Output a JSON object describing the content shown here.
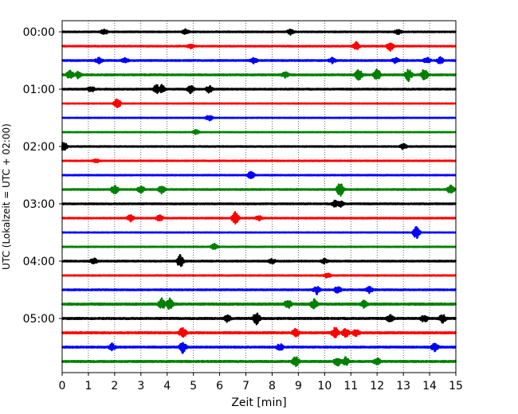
{
  "chart_data": {
    "type": "line",
    "title": "",
    "xlabel": "Zeit  [min]",
    "ylabel": "UTC (Lokalzeit = UTC + 02:00)",
    "xlim": [
      0,
      15
    ],
    "x_ticks": [
      0,
      1,
      2,
      3,
      4,
      5,
      6,
      7,
      8,
      9,
      10,
      11,
      12,
      13,
      14,
      15
    ],
    "y_ticks": [
      "00:00",
      "01:00",
      "02:00",
      "03:00",
      "04:00",
      "05:00"
    ],
    "grid": "vertical dotted at each minute",
    "colors": [
      "#000000",
      "#ff0000",
      "#0000ff",
      "#008000"
    ],
    "traces": [
      {
        "start": "00:00",
        "color": "#000000",
        "noise": 0.5,
        "events": [
          [
            1.6,
            0.8
          ],
          [
            4.7,
            0.7
          ],
          [
            8.7,
            0.8
          ],
          [
            12.8,
            0.7
          ]
        ]
      },
      {
        "start": "00:15",
        "color": "#ff0000",
        "noise": 0.5,
        "events": [
          [
            4.9,
            0.6
          ],
          [
            11.2,
            1.2
          ],
          [
            12.5,
            1.3
          ]
        ]
      },
      {
        "start": "00:30",
        "color": "#0000ff",
        "noise": 0.6,
        "events": [
          [
            1.4,
            0.8
          ],
          [
            2.4,
            0.7
          ],
          [
            7.3,
            0.8
          ],
          [
            10.3,
            0.8
          ],
          [
            12.7,
            0.8
          ],
          [
            13.9,
            0.9
          ],
          [
            14.4,
            1.0
          ]
        ]
      },
      {
        "start": "00:45",
        "color": "#008000",
        "noise": 0.7,
        "events": [
          [
            0.3,
            1.2
          ],
          [
            0.6,
            0.9
          ],
          [
            8.5,
            0.8
          ],
          [
            11.3,
            1.6
          ],
          [
            12.0,
            1.8
          ],
          [
            13.2,
            1.8
          ],
          [
            13.8,
            1.8
          ]
        ]
      },
      {
        "start": "01:00",
        "color": "#000000",
        "noise": 0.6,
        "events": [
          [
            3.6,
            1.4
          ],
          [
            3.8,
            1.2
          ],
          [
            4.9,
            1.2
          ],
          [
            5.6,
            1.1
          ],
          [
            1.1,
            0.9
          ]
        ]
      },
      {
        "start": "01:15",
        "color": "#ff0000",
        "noise": 0.3,
        "events": [
          [
            2.1,
            1.5
          ]
        ]
      },
      {
        "start": "01:30",
        "color": "#0000ff",
        "noise": 0.3,
        "events": [
          [
            5.6,
            0.9
          ]
        ]
      },
      {
        "start": "01:45",
        "color": "#008000",
        "noise": 0.3,
        "events": [
          [
            5.1,
            0.7
          ]
        ]
      },
      {
        "start": "02:00",
        "color": "#000000",
        "noise": 0.5,
        "events": [
          [
            0.05,
            1.6
          ],
          [
            13.0,
            0.8
          ]
        ]
      },
      {
        "start": "02:15",
        "color": "#ff0000",
        "noise": 0.4,
        "events": [
          [
            1.3,
            0.5
          ]
        ]
      },
      {
        "start": "02:30",
        "color": "#0000ff",
        "noise": 0.4,
        "events": [
          [
            7.2,
            1.3
          ]
        ]
      },
      {
        "start": "02:45",
        "color": "#008000",
        "noise": 0.6,
        "events": [
          [
            2.0,
            1.4
          ],
          [
            3.0,
            1.1
          ],
          [
            3.8,
            1.2
          ],
          [
            10.6,
            2.3
          ],
          [
            14.8,
            1.2
          ]
        ]
      },
      {
        "start": "03:00",
        "color": "#000000",
        "noise": 0.6,
        "events": [
          [
            10.4,
            1.0
          ],
          [
            10.6,
            0.9
          ]
        ]
      },
      {
        "start": "03:15",
        "color": "#ff0000",
        "noise": 0.5,
        "events": [
          [
            2.6,
            1.0
          ],
          [
            3.7,
            1.0
          ],
          [
            6.6,
            2.0
          ],
          [
            7.5,
            0.7
          ]
        ]
      },
      {
        "start": "03:30",
        "color": "#0000ff",
        "noise": 0.3,
        "events": [
          [
            13.5,
            2.0
          ]
        ]
      },
      {
        "start": "03:45",
        "color": "#008000",
        "noise": 0.4,
        "events": [
          [
            5.8,
            0.9
          ]
        ]
      },
      {
        "start": "04:00",
        "color": "#000000",
        "noise": 0.6,
        "events": [
          [
            4.5,
            1.9
          ],
          [
            1.2,
            0.9
          ],
          [
            8.0,
            0.7
          ],
          [
            10.0,
            0.7
          ]
        ]
      },
      {
        "start": "04:15",
        "color": "#ff0000",
        "noise": 0.4,
        "events": [
          [
            10.1,
            0.7
          ]
        ]
      },
      {
        "start": "04:30",
        "color": "#0000ff",
        "noise": 0.6,
        "events": [
          [
            9.7,
            1.3
          ],
          [
            10.5,
            1.0
          ],
          [
            11.7,
            0.9
          ]
        ]
      },
      {
        "start": "04:45",
        "color": "#008000",
        "noise": 0.9,
        "events": [
          [
            3.8,
            1.6
          ],
          [
            4.1,
            1.6
          ],
          [
            8.6,
            1.3
          ],
          [
            9.6,
            1.4
          ],
          [
            11.5,
            1.0
          ]
        ]
      },
      {
        "start": "05:00",
        "color": "#000000",
        "noise": 0.8,
        "events": [
          [
            7.4,
            2.0
          ],
          [
            6.3,
            1.0
          ],
          [
            13.8,
            1.2
          ],
          [
            14.5,
            1.2
          ],
          [
            12.5,
            1.0
          ]
        ]
      },
      {
        "start": "05:15",
        "color": "#ff0000",
        "noise": 0.8,
        "events": [
          [
            4.6,
            1.8
          ],
          [
            10.4,
            1.6
          ],
          [
            10.8,
            1.4
          ],
          [
            8.9,
            1.2
          ],
          [
            11.2,
            1.0
          ]
        ]
      },
      {
        "start": "05:30",
        "color": "#0000ff",
        "noise": 0.7,
        "events": [
          [
            4.6,
            1.8
          ],
          [
            14.2,
            1.2
          ],
          [
            8.3,
            1.0
          ],
          [
            1.9,
            1.0
          ]
        ]
      },
      {
        "start": "05:45",
        "color": "#008000",
        "noise": 0.8,
        "events": [
          [
            8.9,
            1.4
          ],
          [
            10.5,
            1.5
          ],
          [
            10.8,
            1.2
          ],
          [
            12.0,
            1.0
          ]
        ]
      }
    ]
  }
}
